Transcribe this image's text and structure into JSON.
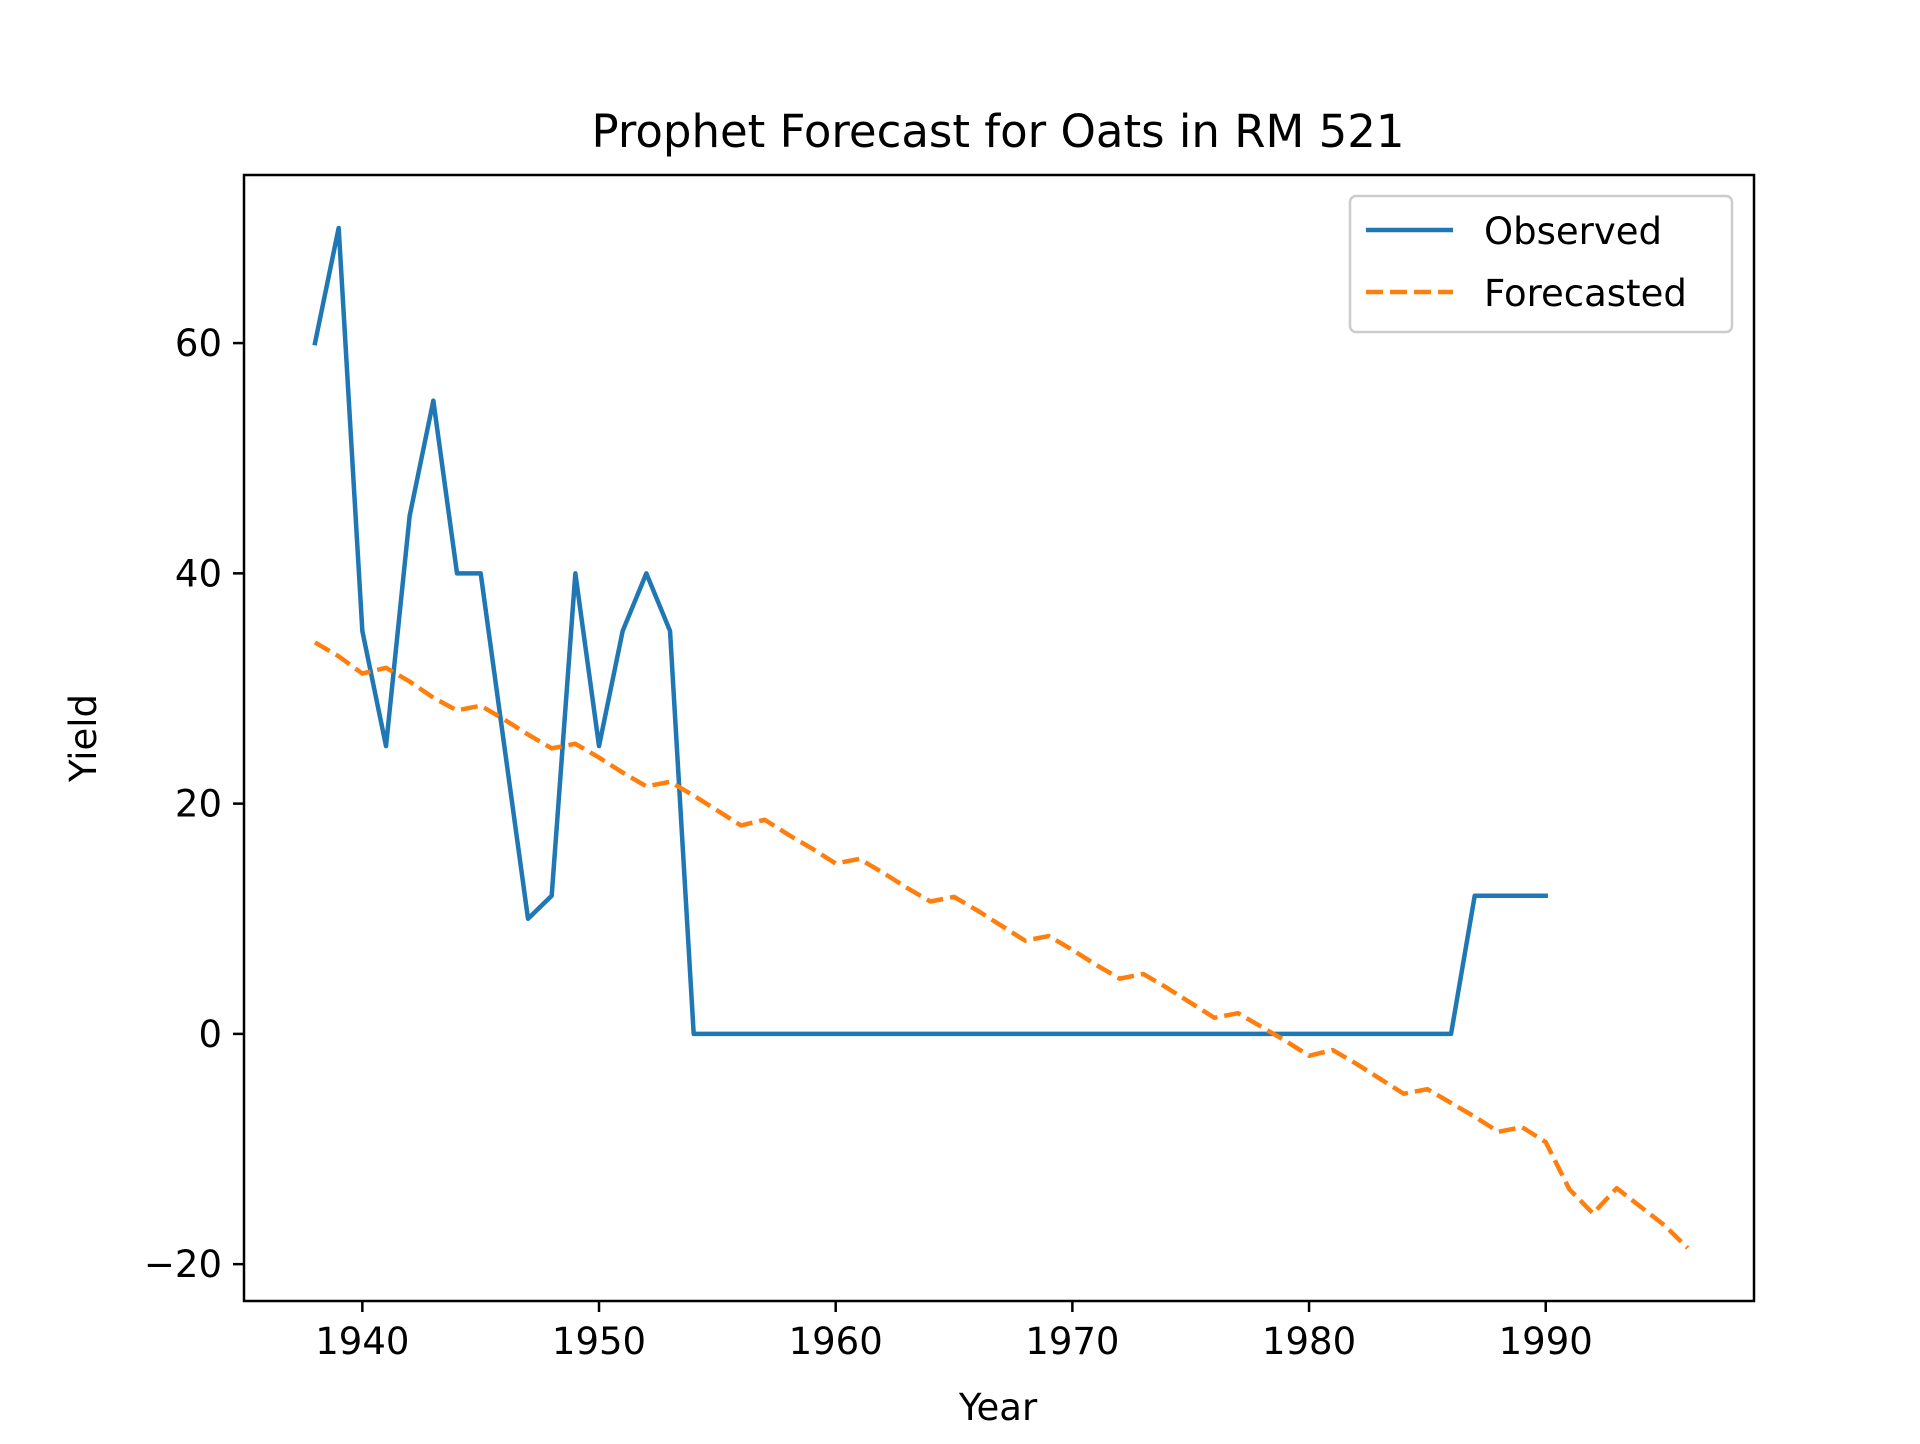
{
  "chart_data": {
    "type": "line",
    "title": "Prophet Forecast for Oats in RM 521",
    "xlabel": "Year",
    "ylabel": "Yield",
    "xlim": [
      1935.0,
      1998.8
    ],
    "ylim": [
      -23.2,
      74.6
    ],
    "xticks": [
      1940,
      1950,
      1960,
      1970,
      1980,
      1990
    ],
    "yticks": [
      -20,
      0,
      20,
      40,
      60
    ],
    "grid": false,
    "legend_position": "top-right",
    "series": [
      {
        "name": "Observed",
        "color": "#1f77b4",
        "style": "solid",
        "x": [
          1938,
          1939,
          1940,
          1941,
          1942,
          1943,
          1944,
          1945,
          1946,
          1947,
          1948,
          1949,
          1950,
          1951,
          1952,
          1953,
          1954,
          1955,
          1956,
          1957,
          1958,
          1959,
          1960,
          1961,
          1962,
          1963,
          1964,
          1965,
          1966,
          1967,
          1968,
          1969,
          1970,
          1971,
          1972,
          1973,
          1974,
          1975,
          1976,
          1977,
          1978,
          1979,
          1980,
          1981,
          1982,
          1983,
          1984,
          1985,
          1986,
          1987,
          1988,
          1989,
          1990
        ],
        "y": [
          60,
          70,
          35,
          25,
          45,
          55,
          40,
          40,
          25,
          10,
          12,
          40,
          25,
          35,
          40,
          35,
          0,
          0,
          0,
          0,
          0,
          0,
          0,
          0,
          0,
          0,
          0,
          0,
          0,
          0,
          0,
          0,
          0,
          0,
          0,
          0,
          0,
          0,
          0,
          0,
          0,
          0,
          0,
          0,
          0,
          0,
          0,
          0,
          0,
          12,
          12,
          12,
          12
        ]
      },
      {
        "name": "Forecasted",
        "color": "#ff7f0e",
        "style": "dashed",
        "x": [
          1938,
          1939,
          1940,
          1941,
          1942,
          1943,
          1944,
          1945,
          1946,
          1947,
          1948,
          1949,
          1950,
          1951,
          1952,
          1953,
          1954,
          1955,
          1956,
          1957,
          1958,
          1959,
          1960,
          1961,
          1962,
          1963,
          1964,
          1965,
          1966,
          1967,
          1968,
          1969,
          1970,
          1971,
          1972,
          1973,
          1974,
          1975,
          1976,
          1977,
          1978,
          1979,
          1980,
          1981,
          1982,
          1983,
          1984,
          1985,
          1986,
          1987,
          1988,
          1989,
          1990,
          1991,
          1992,
          1993,
          1994,
          1995,
          1996
        ],
        "y": [
          34.0,
          32.8,
          31.3,
          31.8,
          30.6,
          29.2,
          28.1,
          28.5,
          27.3,
          26.0,
          24.8,
          25.2,
          24.0,
          22.7,
          21.5,
          21.9,
          20.7,
          19.4,
          18.1,
          18.6,
          17.3,
          16.1,
          14.8,
          15.2,
          14.0,
          12.7,
          11.5,
          11.9,
          10.7,
          9.4,
          8.1,
          8.5,
          7.3,
          6.0,
          4.8,
          5.2,
          4.0,
          2.7,
          1.4,
          1.8,
          0.6,
          -0.6,
          -1.9,
          -1.4,
          -2.6,
          -3.9,
          -5.2,
          -4.8,
          -6.0,
          -7.2,
          -8.5,
          -8.1,
          -9.4,
          -13.5,
          -15.6,
          -13.4,
          -15.0,
          -16.6,
          -18.6
        ]
      }
    ]
  }
}
